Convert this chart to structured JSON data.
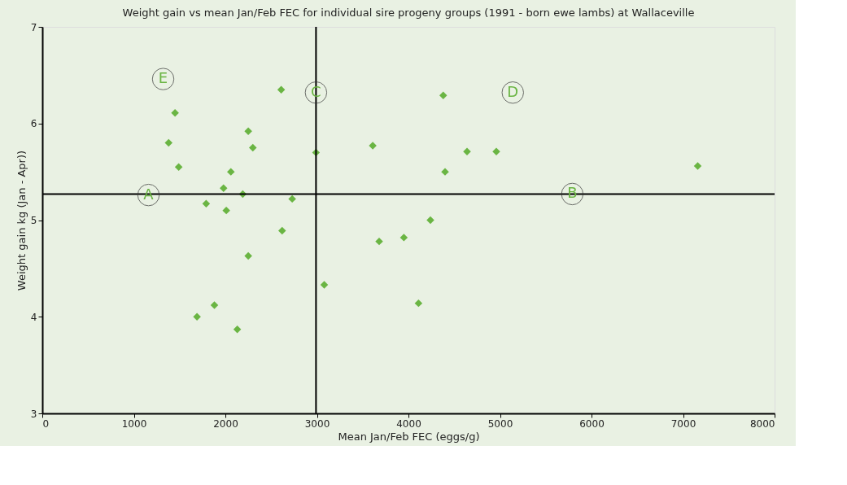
{
  "chart_data": {
    "type": "scatter",
    "title": "Weight gain vs mean Jan/Feb FEC for individual sire progeny groups (1991 - born ewe lambs) at Wallaceville",
    "xlabel": "Mean Jan/Feb FEC (eggs/g)",
    "ylabel": "Weight gain kg (Jan - Apr))",
    "x": [
      1450,
      1380,
      1490,
      2060,
      1980,
      2190,
      1790,
      2010,
      2250,
      2300,
      2610,
      2620,
      2730,
      2250,
      1690,
      1880,
      2130,
      2990,
      3080,
      3610,
      4380,
      4400,
      4640,
      4960,
      4240,
      3680,
      3950,
      4110,
      7160
    ],
    "series": [
      {
        "color": "#6ab543",
        "values": [
          6.11,
          5.8,
          5.55,
          5.5,
          5.33,
          5.27,
          5.17,
          5.1,
          5.92,
          5.75,
          6.35,
          4.89,
          5.22,
          4.63,
          4.0,
          4.12,
          3.87,
          5.7,
          4.33,
          5.77,
          6.29,
          5.5,
          5.71,
          5.71,
          5.0,
          4.78,
          4.82,
          4.14,
          5.56
        ]
      }
    ],
    "marker": "diamond",
    "xlim": [
      0,
      8000
    ],
    "xticks": [
      0,
      1000,
      2000,
      3000,
      4000,
      5000,
      6000,
      7000,
      8000
    ],
    "ylim": [
      3,
      7
    ],
    "yticks": [
      3,
      4,
      5,
      6,
      7
    ],
    "ref_lines": [
      {
        "axis": "x",
        "value": 2990,
        "color": "#000000"
      },
      {
        "axis": "y",
        "value": 5.27,
        "color": "#000000"
      }
    ],
    "annotations": [
      {
        "text": "A",
        "x": 1160,
        "y": 5.26
      },
      {
        "text": "B",
        "x": 5790,
        "y": 5.27
      },
      {
        "text": "C",
        "x": 2990,
        "y": 6.32
      },
      {
        "text": "D",
        "x": 5140,
        "y": 6.32
      },
      {
        "text": "E",
        "x": 1320,
        "y": 6.46
      }
    ]
  }
}
